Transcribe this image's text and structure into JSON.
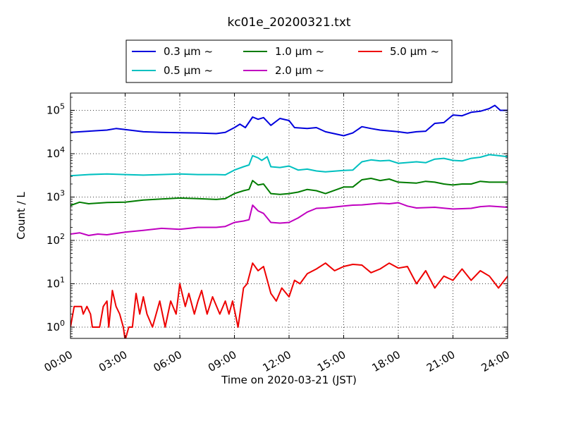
{
  "chart_data": {
    "type": "line",
    "title": "kc01e_20200321.txt",
    "xlabel": "Time on 2020-03-21 (JST)",
    "ylabel": "Count / L",
    "x_unit": "hour",
    "xlim": [
      0,
      24
    ],
    "y_scale": "log",
    "ylim": [
      0.55,
      250000
    ],
    "grid": true,
    "legend_position": "top-center",
    "x_ticks": [
      {
        "value": 0,
        "label": "00:00"
      },
      {
        "value": 3,
        "label": "03:00"
      },
      {
        "value": 6,
        "label": "06:00"
      },
      {
        "value": 9,
        "label": "09:00"
      },
      {
        "value": 12,
        "label": "12:00"
      },
      {
        "value": 15,
        "label": "15:00"
      },
      {
        "value": 18,
        "label": "18:00"
      },
      {
        "value": 21,
        "label": "21:00"
      },
      {
        "value": 24,
        "label": "24:00"
      }
    ],
    "y_ticks": [
      {
        "value": 1,
        "base": "10",
        "exp": "0"
      },
      {
        "value": 10,
        "base": "10",
        "exp": "1"
      },
      {
        "value": 100,
        "base": "10",
        "exp": "2"
      },
      {
        "value": 1000,
        "base": "10",
        "exp": "3"
      },
      {
        "value": 10000,
        "base": "10",
        "exp": "4"
      },
      {
        "value": 100000,
        "base": "10",
        "exp": "5"
      }
    ],
    "series": [
      {
        "name": "0.3 μm ~",
        "color": "#0000dd",
        "points": [
          [
            0,
            31000
          ],
          [
            1,
            33000
          ],
          [
            2,
            35000
          ],
          [
            2.5,
            38000
          ],
          [
            3,
            36000
          ],
          [
            4,
            32000
          ],
          [
            5,
            31000
          ],
          [
            6,
            30500
          ],
          [
            7,
            30000
          ],
          [
            8,
            29000
          ],
          [
            8.5,
            31000
          ],
          [
            9,
            40000
          ],
          [
            9.3,
            48000
          ],
          [
            9.6,
            40000
          ],
          [
            10,
            70000
          ],
          [
            10.3,
            62000
          ],
          [
            10.6,
            68000
          ],
          [
            11,
            45000
          ],
          [
            11.5,
            65000
          ],
          [
            12,
            58000
          ],
          [
            12.3,
            40000
          ],
          [
            13,
            38000
          ],
          [
            13.5,
            40000
          ],
          [
            14,
            32000
          ],
          [
            15,
            26000
          ],
          [
            15.5,
            30000
          ],
          [
            16,
            42000
          ],
          [
            16.5,
            38000
          ],
          [
            17,
            35000
          ],
          [
            18,
            32000
          ],
          [
            18.5,
            30000
          ],
          [
            19,
            32000
          ],
          [
            19.5,
            33000
          ],
          [
            20,
            50000
          ],
          [
            20.5,
            52000
          ],
          [
            21,
            78000
          ],
          [
            21.5,
            75000
          ],
          [
            22,
            90000
          ],
          [
            22.5,
            95000
          ],
          [
            23,
            110000
          ],
          [
            23.3,
            130000
          ],
          [
            23.6,
            100000
          ],
          [
            24,
            100000
          ]
        ]
      },
      {
        "name": "0.5 μm ~",
        "color": "#00c0c0",
        "points": [
          [
            0,
            3100
          ],
          [
            1,
            3300
          ],
          [
            2,
            3400
          ],
          [
            3,
            3300
          ],
          [
            4,
            3200
          ],
          [
            5,
            3300
          ],
          [
            6,
            3400
          ],
          [
            7,
            3300
          ],
          [
            8,
            3300
          ],
          [
            8.5,
            3250
          ],
          [
            9,
            4200
          ],
          [
            9.5,
            5000
          ],
          [
            9.8,
            5500
          ],
          [
            10,
            9000
          ],
          [
            10.3,
            8000
          ],
          [
            10.5,
            7000
          ],
          [
            10.8,
            8500
          ],
          [
            11,
            5000
          ],
          [
            11.5,
            4800
          ],
          [
            12,
            5200
          ],
          [
            12.5,
            4200
          ],
          [
            13,
            4400
          ],
          [
            13.5,
            4000
          ],
          [
            14,
            3800
          ],
          [
            15,
            4100
          ],
          [
            15.5,
            4200
          ],
          [
            16,
            6500
          ],
          [
            16.5,
            7200
          ],
          [
            17,
            6800
          ],
          [
            17.5,
            7000
          ],
          [
            18,
            6000
          ],
          [
            19,
            6500
          ],
          [
            19.5,
            6200
          ],
          [
            20,
            7500
          ],
          [
            20.5,
            7800
          ],
          [
            21,
            7000
          ],
          [
            21.5,
            6800
          ],
          [
            22,
            7800
          ],
          [
            22.5,
            8300
          ],
          [
            23,
            9500
          ],
          [
            23.5,
            9000
          ],
          [
            24,
            8500
          ]
        ]
      },
      {
        "name": "1.0 μm ~",
        "color": "#007c00",
        "points": [
          [
            0,
            640
          ],
          [
            0.5,
            760
          ],
          [
            1,
            700
          ],
          [
            2,
            750
          ],
          [
            3,
            760
          ],
          [
            4,
            850
          ],
          [
            5,
            900
          ],
          [
            6,
            950
          ],
          [
            7,
            920
          ],
          [
            8,
            880
          ],
          [
            8.5,
            920
          ],
          [
            9,
            1200
          ],
          [
            9.5,
            1400
          ],
          [
            9.8,
            1500
          ],
          [
            10,
            2400
          ],
          [
            10.3,
            1900
          ],
          [
            10.6,
            2000
          ],
          [
            11,
            1200
          ],
          [
            11.5,
            1150
          ],
          [
            12,
            1200
          ],
          [
            12.5,
            1300
          ],
          [
            13,
            1500
          ],
          [
            13.5,
            1400
          ],
          [
            14,
            1200
          ],
          [
            15,
            1700
          ],
          [
            15.5,
            1700
          ],
          [
            16,
            2500
          ],
          [
            16.5,
            2700
          ],
          [
            17,
            2400
          ],
          [
            17.5,
            2600
          ],
          [
            18,
            2200
          ],
          [
            19,
            2100
          ],
          [
            19.5,
            2300
          ],
          [
            20,
            2200
          ],
          [
            20.5,
            2000
          ],
          [
            21,
            1900
          ],
          [
            21.5,
            2000
          ],
          [
            22,
            2000
          ],
          [
            22.5,
            2300
          ],
          [
            23,
            2200
          ],
          [
            23.5,
            2200
          ],
          [
            24,
            2200
          ]
        ]
      },
      {
        "name": "2.0 μm ~",
        "color": "#c000c0",
        "points": [
          [
            0,
            140
          ],
          [
            0.5,
            150
          ],
          [
            1,
            130
          ],
          [
            1.5,
            140
          ],
          [
            2,
            135
          ],
          [
            3,
            155
          ],
          [
            4,
            170
          ],
          [
            5,
            190
          ],
          [
            6,
            180
          ],
          [
            7,
            200
          ],
          [
            8,
            200
          ],
          [
            8.5,
            210
          ],
          [
            9,
            260
          ],
          [
            9.5,
            280
          ],
          [
            9.8,
            300
          ],
          [
            10,
            650
          ],
          [
            10.3,
            480
          ],
          [
            10.6,
            420
          ],
          [
            11,
            260
          ],
          [
            11.5,
            250
          ],
          [
            12,
            260
          ],
          [
            12.5,
            330
          ],
          [
            13,
            450
          ],
          [
            13.5,
            550
          ],
          [
            14,
            560
          ],
          [
            15,
            620
          ],
          [
            15.5,
            650
          ],
          [
            16,
            660
          ],
          [
            17,
            720
          ],
          [
            17.5,
            700
          ],
          [
            18,
            740
          ],
          [
            18.5,
            620
          ],
          [
            19,
            560
          ],
          [
            20,
            580
          ],
          [
            21,
            530
          ],
          [
            22,
            550
          ],
          [
            22.5,
            600
          ],
          [
            23,
            620
          ],
          [
            23.5,
            600
          ],
          [
            24,
            580
          ]
        ]
      },
      {
        "name": "5.0 μm ~",
        "color": "#ee0000",
        "points": [
          [
            0,
            1
          ],
          [
            0.2,
            3
          ],
          [
            0.6,
            3
          ],
          [
            0.7,
            2
          ],
          [
            0.9,
            3
          ],
          [
            1.1,
            2
          ],
          [
            1.2,
            1
          ],
          [
            1.6,
            1
          ],
          [
            1.8,
            3
          ],
          [
            2,
            4
          ],
          [
            2.1,
            1
          ],
          [
            2.3,
            7
          ],
          [
            2.5,
            3
          ],
          [
            2.7,
            2
          ],
          [
            2.9,
            1
          ],
          [
            3,
            0.5
          ],
          [
            3.2,
            1
          ],
          [
            3.4,
            1
          ],
          [
            3.6,
            6
          ],
          [
            3.8,
            2
          ],
          [
            4,
            5
          ],
          [
            4.2,
            2
          ],
          [
            4.5,
            1
          ],
          [
            4.9,
            4
          ],
          [
            5.2,
            1
          ],
          [
            5.5,
            4
          ],
          [
            5.8,
            2
          ],
          [
            6,
            10
          ],
          [
            6.3,
            3
          ],
          [
            6.5,
            6
          ],
          [
            6.8,
            2
          ],
          [
            7,
            4
          ],
          [
            7.2,
            7
          ],
          [
            7.5,
            2
          ],
          [
            7.8,
            5
          ],
          [
            8.2,
            2
          ],
          [
            8.5,
            4
          ],
          [
            8.7,
            2
          ],
          [
            8.9,
            4
          ],
          [
            9.2,
            1
          ],
          [
            9.5,
            8
          ],
          [
            9.7,
            10
          ],
          [
            10,
            30
          ],
          [
            10.3,
            20
          ],
          [
            10.6,
            25
          ],
          [
            11,
            6
          ],
          [
            11.3,
            4
          ],
          [
            11.6,
            8
          ],
          [
            12,
            5
          ],
          [
            12.3,
            12
          ],
          [
            12.6,
            10
          ],
          [
            13,
            17
          ],
          [
            13.5,
            22
          ],
          [
            14,
            30
          ],
          [
            14.5,
            20
          ],
          [
            15,
            25
          ],
          [
            15.5,
            28
          ],
          [
            16,
            27
          ],
          [
            16.5,
            18
          ],
          [
            17,
            22
          ],
          [
            17.5,
            30
          ],
          [
            18,
            23
          ],
          [
            18.5,
            25
          ],
          [
            19,
            10
          ],
          [
            19.5,
            20
          ],
          [
            20,
            8
          ],
          [
            20.5,
            15
          ],
          [
            21,
            12
          ],
          [
            21.5,
            22
          ],
          [
            22,
            12
          ],
          [
            22.5,
            20
          ],
          [
            23,
            15
          ],
          [
            23.5,
            8
          ],
          [
            24,
            15
          ]
        ]
      }
    ]
  }
}
